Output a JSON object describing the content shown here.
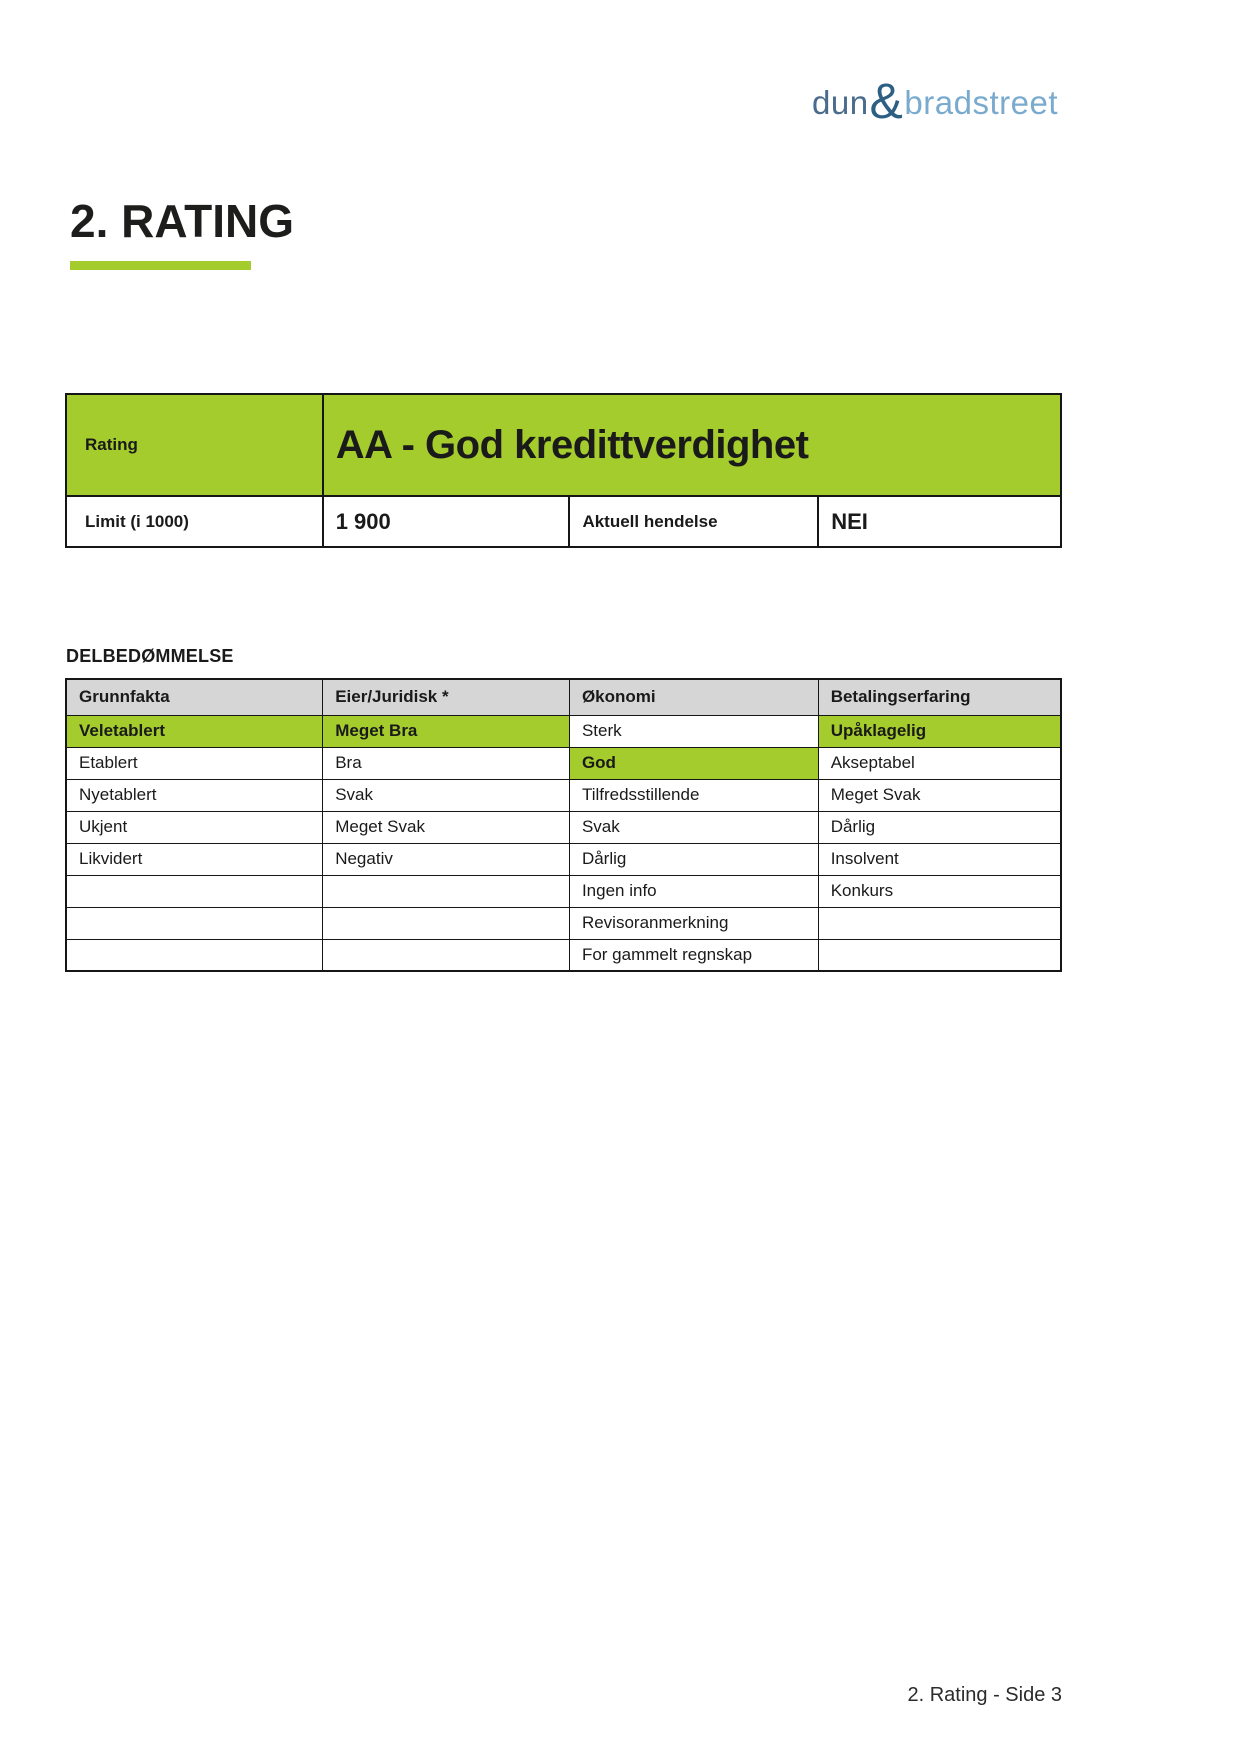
{
  "theme": {
    "accent": "#a4cc2c",
    "header_bg": "#d6d6d6",
    "border": "#161616",
    "logo_dun_color": "#4a6b8b",
    "logo_amp_color": "#2d5f82",
    "logo_bradstreet_color": "#7aabce"
  },
  "logo": {
    "dun": "dun",
    "amp": "&",
    "bradstreet": "bradstreet"
  },
  "heading": {
    "title": "2. RATING"
  },
  "rating_table": {
    "rating_label": "Rating",
    "rating_value": "AA - God kredittverdighet",
    "limit_label": "Limit (i 1000)",
    "limit_value": "1 900",
    "event_label": "Aktuell hendelse",
    "event_value": "NEI"
  },
  "assessment": {
    "title": "DELBEDØMMELSE",
    "columns": [
      "Grunnfakta",
      "Eier/Juridisk *",
      "Økonomi",
      "Betalingserfaring"
    ],
    "rows": [
      [
        {
          "text": "Veletablert",
          "hl": true
        },
        {
          "text": "Meget Bra",
          "hl": true
        },
        {
          "text": "Sterk",
          "hl": false
        },
        {
          "text": "Upåklagelig",
          "hl": true
        }
      ],
      [
        {
          "text": "Etablert",
          "hl": false
        },
        {
          "text": "Bra",
          "hl": false
        },
        {
          "text": "God",
          "hl": true
        },
        {
          "text": "Akseptabel",
          "hl": false
        }
      ],
      [
        {
          "text": "Nyetablert",
          "hl": false
        },
        {
          "text": "Svak",
          "hl": false
        },
        {
          "text": "Tilfredsstillende",
          "hl": false
        },
        {
          "text": "Meget Svak",
          "hl": false
        }
      ],
      [
        {
          "text": "Ukjent",
          "hl": false
        },
        {
          "text": "Meget Svak",
          "hl": false
        },
        {
          "text": "Svak",
          "hl": false
        },
        {
          "text": "Dårlig",
          "hl": false
        }
      ],
      [
        {
          "text": "Likvidert",
          "hl": false
        },
        {
          "text": "Negativ",
          "hl": false
        },
        {
          "text": "Dårlig",
          "hl": false
        },
        {
          "text": "Insolvent",
          "hl": false
        }
      ],
      [
        {
          "text": "",
          "hl": false
        },
        {
          "text": "",
          "hl": false
        },
        {
          "text": "Ingen info",
          "hl": false
        },
        {
          "text": "Konkurs",
          "hl": false
        }
      ],
      [
        {
          "text": "",
          "hl": false
        },
        {
          "text": "",
          "hl": false
        },
        {
          "text": "Revisoranmerkning",
          "hl": false
        },
        {
          "text": "",
          "hl": false
        }
      ],
      [
        {
          "text": "",
          "hl": false
        },
        {
          "text": "",
          "hl": false
        },
        {
          "text": "For gammelt regnskap",
          "hl": false
        },
        {
          "text": "",
          "hl": false
        }
      ]
    ]
  },
  "footer": {
    "text": "2. Rating - Side 3"
  }
}
